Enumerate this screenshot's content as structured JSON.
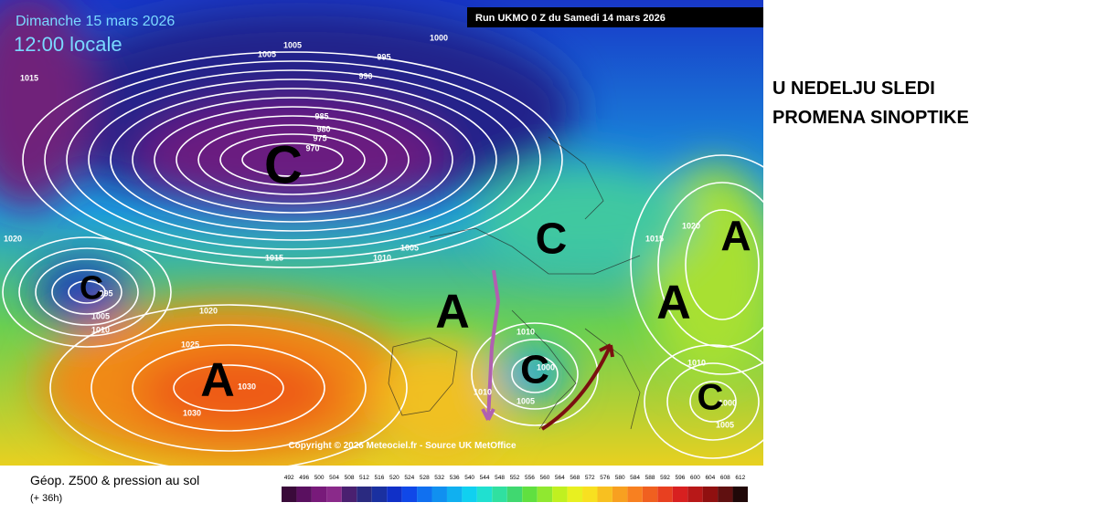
{
  "header": {
    "date": "Dimanche 15 mars 2026",
    "time": "12:00 locale",
    "run": "Run UKMO 0 Z du Samedi 14 mars 2026"
  },
  "annotation": {
    "lines": [
      "U NEDELJU SLEDI",
      "PROMENA SINOPTIKE"
    ]
  },
  "map": {
    "centers": [
      "C",
      "C",
      "A",
      "A",
      "A",
      "A",
      "C",
      "C",
      "C"
    ],
    "isobar_labels": [
      "1000",
      "995",
      "990",
      "985",
      "980",
      "975",
      "970",
      "1005",
      "1005",
      "1015",
      "1020",
      "1015",
      "1010",
      "1005",
      "1020",
      "1025",
      "1030",
      "1030",
      "995",
      "1005",
      "1010",
      "1010",
      "1010",
      "1005",
      "1015",
      "1020",
      "1010",
      "1000",
      "1005",
      "1000"
    ],
    "copyright": "Copyright © 2026 Meteociel.fr - Source UK MetOffice"
  },
  "footer": {
    "title": "Géop. Z500 & pression au sol",
    "lead": "(+ 36h)"
  },
  "scale": {
    "ticks": [
      492,
      496,
      500,
      504,
      508,
      512,
      516,
      520,
      524,
      528,
      532,
      536,
      540,
      544,
      548,
      552,
      556,
      560,
      564,
      568,
      572,
      576,
      580,
      584,
      588,
      592,
      596,
      600,
      604,
      608,
      612
    ]
  }
}
